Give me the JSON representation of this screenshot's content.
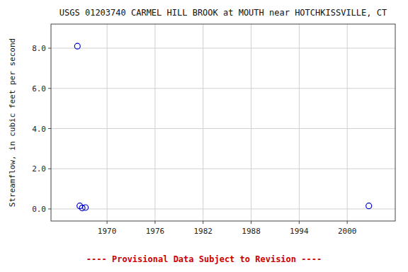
{
  "chart_data": {
    "type": "scatter",
    "title": "USGS 01203740 CARMEL HILL BROOK at MOUTH near HOTCHKISSVILLE, CT",
    "ylabel": "Streamflow, in cubic feet per second",
    "x": [
      1966.3,
      1966.6,
      1966.9,
      1967.3,
      2002.7
    ],
    "values": [
      8.1,
      0.15,
      0.05,
      0.07,
      0.15
    ],
    "color": "#0000cc",
    "marker": "circle",
    "xlim": [
      1963,
      2006
    ],
    "ylim": [
      -0.6,
      9.2
    ],
    "xticks": [
      1970,
      1976,
      1982,
      1988,
      1994,
      2000
    ],
    "yticks": [
      {
        "value": 0.0,
        "label": "0.0"
      },
      {
        "value": 2.0,
        "label": "2.0"
      },
      {
        "value": 4.0,
        "label": "4.0"
      },
      {
        "value": 6.0,
        "label": "6.0"
      },
      {
        "value": 8.0,
        "label": "8.0"
      }
    ],
    "grid": true,
    "annotations": [
      {
        "text": "---- Provisional Data Subject to Revision ----",
        "color": "#cc0000"
      }
    ]
  }
}
